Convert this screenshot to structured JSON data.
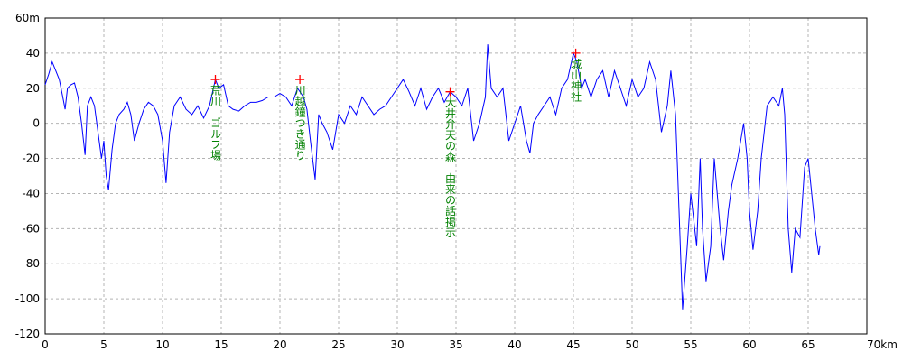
{
  "chart_data": {
    "type": "line",
    "x": [
      0,
      0.3,
      0.6,
      0.9,
      1.2,
      1.5,
      1.7,
      1.9,
      2.2,
      2.5,
      2.8,
      3.1,
      3.4,
      3.6,
      3.9,
      4.2,
      4.5,
      4.8,
      5.0,
      5.2,
      5.4,
      5.7,
      6.0,
      6.3,
      6.7,
      7.0,
      7.3,
      7.6,
      8.0,
      8.4,
      8.8,
      9.2,
      9.6,
      10.0,
      10.3,
      10.6,
      11.0,
      11.5,
      12.0,
      12.5,
      13.0,
      13.5,
      14.0,
      14.5,
      14.8,
      15.2,
      15.6,
      16.0,
      16.5,
      17.0,
      17.5,
      18.0,
      18.5,
      19.0,
      19.5,
      20.0,
      20.5,
      21.0,
      21.5,
      22.0,
      22.3,
      22.6,
      23.0,
      23.3,
      23.6,
      24.0,
      24.5,
      25.0,
      25.5,
      26.0,
      26.5,
      27.0,
      27.5,
      28.0,
      28.5,
      29.0,
      29.5,
      30.0,
      30.5,
      31.0,
      31.5,
      32.0,
      32.5,
      33.0,
      33.5,
      34.0,
      34.5,
      35.0,
      35.5,
      36.0,
      36.5,
      37.0,
      37.5,
      37.7,
      38.0,
      38.5,
      39.0,
      39.5,
      40.0,
      40.5,
      41.0,
      41.3,
      41.6,
      42.0,
      42.5,
      43.0,
      43.5,
      44.0,
      44.5,
      45.0,
      45.3,
      45.7,
      46.0,
      46.5,
      47.0,
      47.5,
      48.0,
      48.5,
      49.0,
      49.5,
      50.0,
      50.5,
      51.0,
      51.5,
      52.0,
      52.5,
      53.0,
      53.3,
      53.7,
      54.0,
      54.3,
      54.7,
      55.0,
      55.5,
      55.8,
      56.0,
      56.3,
      56.7,
      57.0,
      57.5,
      57.8,
      58.2,
      58.5,
      59.0,
      59.5,
      59.8,
      60.0,
      60.3,
      60.7,
      61.0,
      61.5,
      62.0,
      62.5,
      62.8,
      63.0,
      63.3,
      63.6,
      63.9,
      64.3,
      64.7,
      65.0,
      65.3,
      65.6,
      65.9,
      66.0
    ],
    "series": [
      {
        "color": "#0000ff",
        "values": [
          22,
          28,
          35,
          30,
          25,
          15,
          8,
          20,
          22,
          23,
          15,
          0,
          -18,
          10,
          15,
          10,
          -5,
          -20,
          -10,
          -30,
          -38,
          -15,
          0,
          5,
          8,
          12,
          5,
          -10,
          0,
          8,
          12,
          10,
          5,
          -10,
          -34,
          -5,
          10,
          15,
          8,
          5,
          10,
          3,
          10,
          25,
          20,
          22,
          10,
          8,
          7,
          10,
          12,
          12,
          13,
          15,
          15,
          17,
          15,
          10,
          20,
          15,
          8,
          -10,
          -32,
          5,
          0,
          -5,
          -15,
          5,
          0,
          10,
          5,
          15,
          10,
          5,
          8,
          10,
          15,
          20,
          25,
          18,
          10,
          20,
          8,
          15,
          20,
          12,
          18,
          15,
          10,
          20,
          -10,
          0,
          15,
          45,
          20,
          15,
          20,
          -10,
          0,
          10,
          -10,
          -17,
          0,
          5,
          10,
          15,
          5,
          20,
          25,
          40,
          35,
          20,
          25,
          15,
          25,
          30,
          15,
          30,
          20,
          10,
          25,
          15,
          20,
          35,
          25,
          -5,
          10,
          30,
          5,
          -50,
          -106,
          -70,
          -40,
          -70,
          -20,
          -60,
          -90,
          -70,
          -20,
          -60,
          -78,
          -50,
          -35,
          -20,
          0,
          -20,
          -50,
          -72,
          -50,
          -20,
          10,
          15,
          10,
          20,
          5,
          -60,
          -85,
          -60,
          -65,
          -25,
          -20,
          -40,
          -60,
          -75,
          -70
        ]
      }
    ],
    "xlim": [
      0,
      70
    ],
    "xticks": [
      0,
      5,
      10,
      15,
      20,
      25,
      30,
      35,
      40,
      45,
      50,
      55,
      60,
      65,
      {
        "value": 70,
        "label": "70km"
      }
    ],
    "ylim": [
      -120,
      60
    ],
    "yticks": [
      -120,
      -100,
      -80,
      -60,
      -40,
      -20,
      0,
      20,
      40,
      {
        "value": 60,
        "label": "60m"
      }
    ],
    "grid": true,
    "marker_color": "#ff0000",
    "annotations": [
      {
        "text": "荒川　ゴルフ場",
        "x": 14.5,
        "y": 25
      },
      {
        "text": "川越鐘つき通り",
        "x": 21.7,
        "y": 25
      },
      {
        "text": "大井弁天の森　由来の話掲示",
        "x": 34.5,
        "y": 18
      },
      {
        "text": "城山神社",
        "x": 45.2,
        "y": 40
      }
    ]
  }
}
